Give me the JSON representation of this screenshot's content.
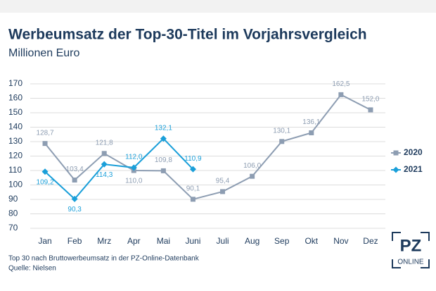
{
  "chart_data": {
    "type": "line",
    "title": "Werbeumsatz der Top-30-Titel im Vorjahrsvergleich",
    "subtitle": "Millionen Euro",
    "categories": [
      "Jan",
      "Feb",
      "Mrz",
      "Apr",
      "Mai",
      "Juni",
      "Juli",
      "Aug",
      "Sep",
      "Okt",
      "Nov",
      "Dez"
    ],
    "series": [
      {
        "name": "2020",
        "color": "#8d9db2",
        "marker": "square",
        "values": [
          128.7,
          103.4,
          121.8,
          110.0,
          109.8,
          90.1,
          95.4,
          106.0,
          130.1,
          136.1,
          162.5,
          152.0
        ],
        "value_labels": [
          "128,7",
          "103,4",
          "121,8",
          "110,0",
          "109,8",
          "90,1",
          "95,4",
          "106,0",
          "130,1",
          "136,1",
          "162,5",
          "152,0"
        ]
      },
      {
        "name": "2021",
        "color": "#1a9fd9",
        "marker": "diamond",
        "values": [
          109.2,
          90.3,
          114.3,
          112.0,
          132.1,
          110.9,
          null,
          null,
          null,
          null,
          null,
          null
        ],
        "value_labels": [
          "109,2",
          "90,3",
          "114,3",
          "112,0",
          "132,1",
          "110,9",
          null,
          null,
          null,
          null,
          null,
          null
        ]
      }
    ],
    "ylim": [
      70,
      170
    ],
    "yticks": [
      70,
      80,
      90,
      100,
      110,
      120,
      130,
      140,
      150,
      160,
      170
    ],
    "grid": true,
    "legend": "right",
    "footnotes": [
      "Top 30 nach Bruttowerbeumsatz in der PZ-Online-Datenbank",
      "Quelle: Nielsen"
    ],
    "logo": {
      "top": "PZ",
      "bottom": "ONLINE"
    }
  }
}
